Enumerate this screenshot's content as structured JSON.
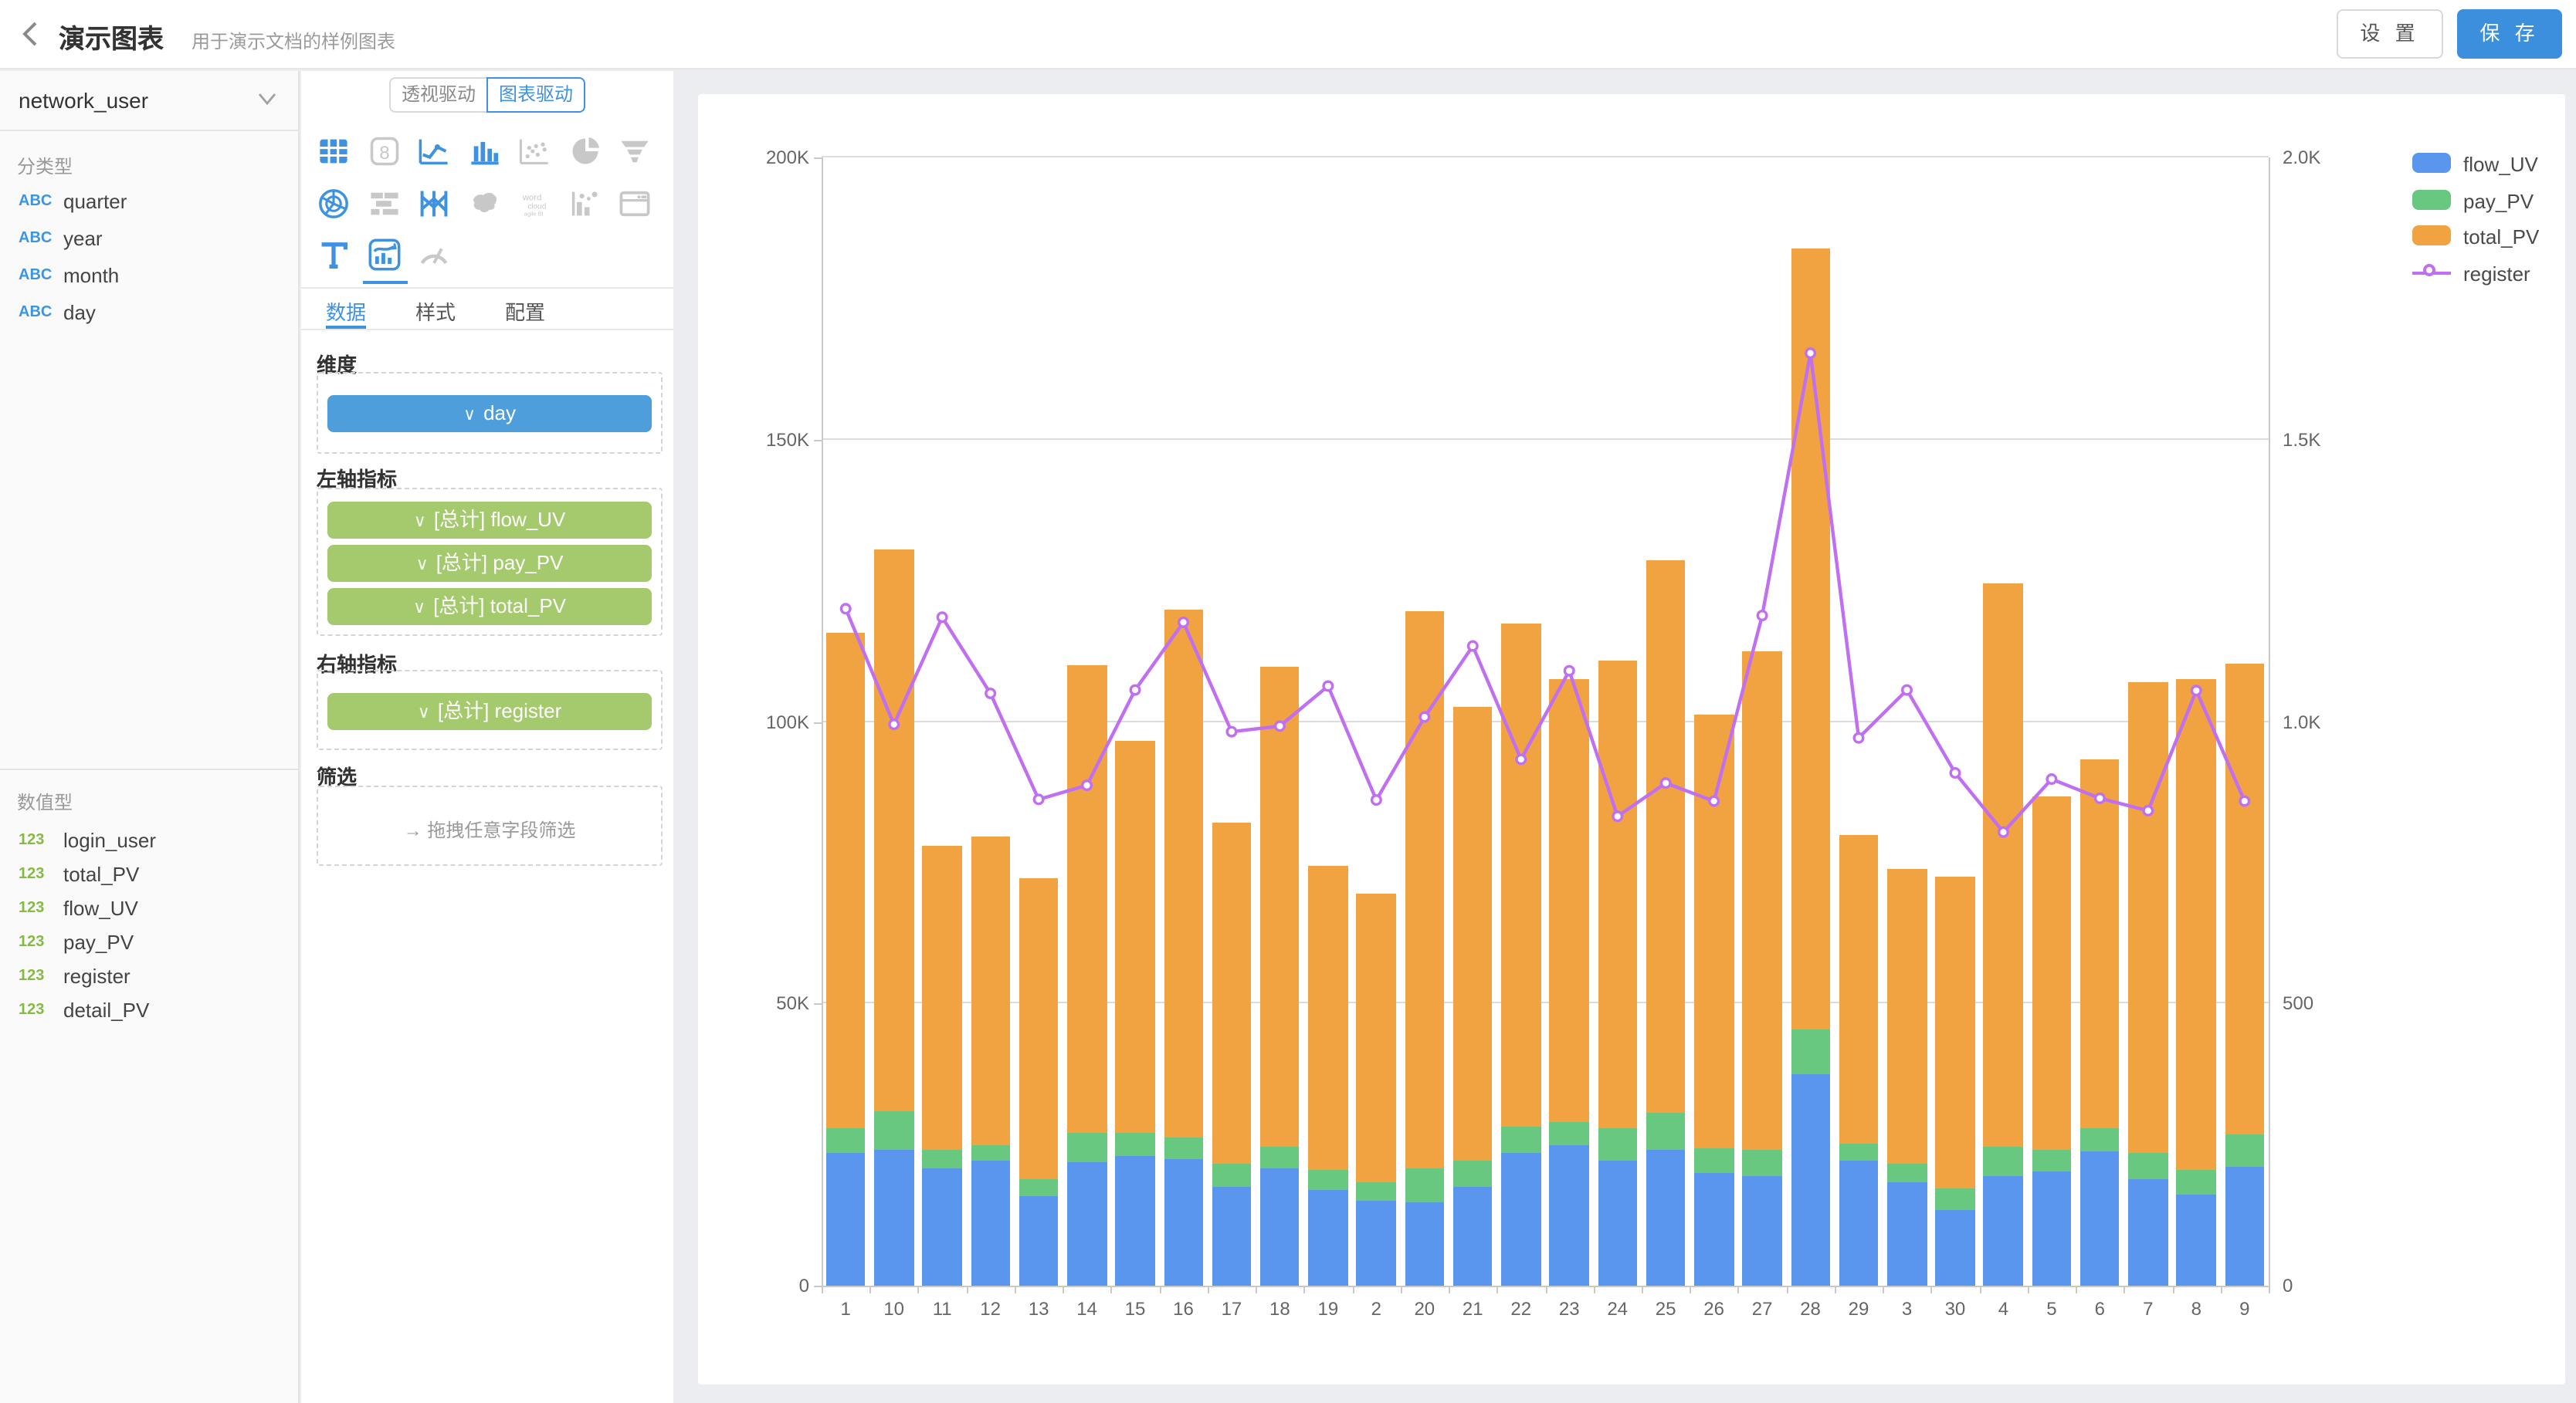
{
  "header": {
    "title": "演示图表",
    "subtitle": "用于演示文档的样例图表",
    "settings_label": "设 置",
    "save_label": "保 存"
  },
  "sidebar": {
    "dataset": "network_user",
    "categorical_label": "分类型",
    "abc_prefix": "ABC",
    "categorical_fields": [
      "quarter",
      "year",
      "month",
      "day"
    ],
    "numeric_label": "数值型",
    "num_prefix": "123",
    "numeric_fields": [
      "login_user",
      "total_PV",
      "flow_UV",
      "pay_PV",
      "register",
      "detail_PV"
    ]
  },
  "panel": {
    "mode_tabs": [
      "透视驱动",
      "图表驱动"
    ],
    "active_mode": "图表驱动",
    "icon_rows": [
      [
        {
          "name": "table-icon",
          "active": true
        },
        {
          "name": "number-card-icon",
          "active": false
        },
        {
          "name": "line-chart-icon",
          "active": true
        },
        {
          "name": "bar-chart-icon",
          "active": true
        },
        {
          "name": "scatter-chart-icon",
          "active": false
        },
        {
          "name": "pie-chart-icon",
          "active": false
        },
        {
          "name": "funnel-chart-icon",
          "active": false
        }
      ],
      [
        {
          "name": "radar-chart-icon",
          "active": true
        },
        {
          "name": "gantt-chart-icon",
          "active": false
        },
        {
          "name": "parallel-chart-icon",
          "active": true
        },
        {
          "name": "map-chart-icon",
          "active": false
        },
        {
          "name": "word-cloud-icon",
          "active": false
        },
        {
          "name": "bubble-chart-icon",
          "active": false
        },
        {
          "name": "iframe-icon",
          "active": false
        }
      ],
      [
        {
          "name": "text-icon",
          "active": true
        },
        {
          "name": "combo-chart-icon",
          "active": true,
          "selected": true
        },
        {
          "name": "gauge-chart-icon",
          "active": false
        }
      ]
    ],
    "tabs": [
      "数据",
      "样式",
      "配置"
    ],
    "active_tab": "数据",
    "dimension_label": "维度",
    "dimension_pills": [
      "day"
    ],
    "left_axis_label": "左轴指标",
    "left_axis_pills": [
      "[总计] flow_UV",
      "[总计] pay_PV",
      "[总计] total_PV"
    ],
    "right_axis_label": "右轴指标",
    "right_axis_pills": [
      "[总计] register"
    ],
    "filter_label": "筛选",
    "filter_placeholder": "拖拽任意字段筛选"
  },
  "chart_data": {
    "type": "bar",
    "subtype": "stacked-bar-with-line",
    "categories": [
      "1",
      "10",
      "11",
      "12",
      "13",
      "14",
      "15",
      "16",
      "17",
      "18",
      "19",
      "2",
      "20",
      "21",
      "22",
      "23",
      "24",
      "25",
      "26",
      "27",
      "28",
      "29",
      "3",
      "30",
      "4",
      "5",
      "6",
      "7",
      "8",
      "9"
    ],
    "series": [
      {
        "name": "flow_UV",
        "axis": "left",
        "type": "bar",
        "color": "#5a96ee",
        "values": [
          23500,
          24200,
          20900,
          22100,
          16000,
          22000,
          23100,
          22400,
          17400,
          20900,
          16900,
          15000,
          14800,
          17500,
          23500,
          24900,
          22200,
          24200,
          20100,
          19300,
          37400,
          22200,
          18200,
          13500,
          19400,
          20200,
          23800,
          18900,
          16200,
          21100
        ]
      },
      {
        "name": "pay_PV",
        "axis": "left",
        "type": "bar",
        "color": "#68c87f",
        "values": [
          4300,
          6800,
          3200,
          2900,
          2800,
          5000,
          3900,
          4000,
          4100,
          3700,
          3700,
          3200,
          5900,
          4600,
          4700,
          4200,
          5600,
          6400,
          4300,
          4700,
          8000,
          3000,
          3300,
          3700,
          5300,
          3800,
          4100,
          4500,
          4200,
          5600
        ]
      },
      {
        "name": "total_PV",
        "axis": "left",
        "type": "bar",
        "color": "#f2a341",
        "values": [
          88000,
          99400,
          54000,
          54700,
          53300,
          82900,
          69700,
          93400,
          60500,
          85100,
          53900,
          51200,
          98900,
          80400,
          89100,
          78300,
          83000,
          97900,
          76800,
          88500,
          138500,
          54700,
          52300,
          55300,
          99700,
          62800,
          65300,
          83500,
          87200,
          83500
        ]
      },
      {
        "name": "register",
        "axis": "right",
        "type": "line",
        "color": "#c06ff0",
        "values": [
          1200,
          995,
          1185,
          1050,
          862,
          887,
          1056,
          1176,
          982,
          992,
          1063,
          861,
          1008,
          1134,
          933,
          1090,
          832,
          891,
          859,
          1188,
          1653,
          971,
          1056,
          909,
          804,
          898,
          864,
          842,
          1055,
          859
        ]
      }
    ],
    "left_axis": {
      "ticks": [
        "0",
        "50K",
        "100K",
        "150K",
        "200K"
      ],
      "max": 200000
    },
    "right_axis": {
      "ticks": [
        "0",
        "500",
        "1.0K",
        "1.5K",
        "2.0K"
      ],
      "max": 2000
    },
    "legend": [
      {
        "label": "flow_UV",
        "color": "#5a96ee",
        "marker": "rect"
      },
      {
        "label": "pay_PV",
        "color": "#68c87f",
        "marker": "rect"
      },
      {
        "label": "total_PV",
        "color": "#f2a341",
        "marker": "rect"
      },
      {
        "label": "register",
        "color": "#c06ff0",
        "marker": "line-circle"
      }
    ],
    "grid": true,
    "legend_position": "top-right"
  }
}
